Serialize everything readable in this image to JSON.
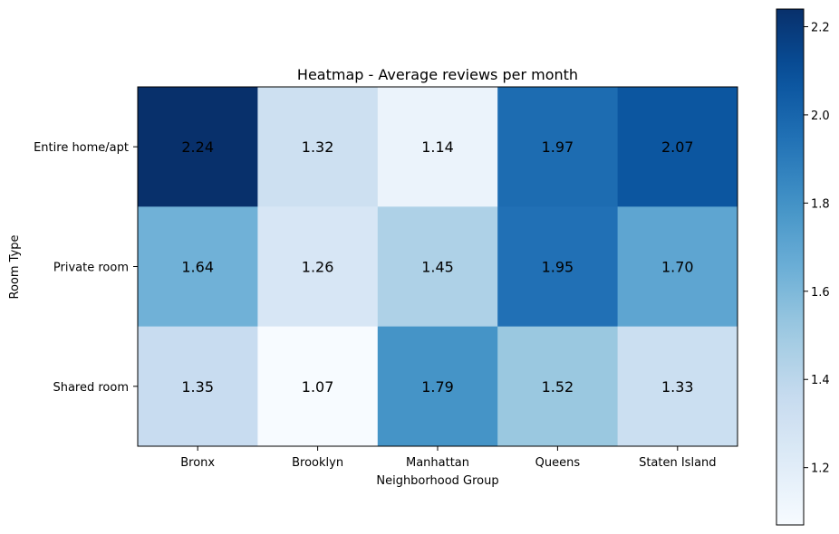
{
  "chart_data": {
    "type": "heatmap",
    "title": "Heatmap - Average reviews per month",
    "xlabel": "Neighborhood Group",
    "ylabel": "Room Type",
    "x_categories": [
      "Bronx",
      "Brooklyn",
      "Manhattan",
      "Queens",
      "Staten Island"
    ],
    "y_categories": [
      "Entire home/apt",
      "Private room",
      "Shared room"
    ],
    "values": [
      [
        2.24,
        1.32,
        1.14,
        1.97,
        2.07
      ],
      [
        1.64,
        1.26,
        1.45,
        1.95,
        1.7
      ],
      [
        1.35,
        1.07,
        1.79,
        1.52,
        1.33
      ]
    ],
    "cell_labels": [
      [
        "2.24",
        "1.32",
        "1.14",
        "1.97",
        "2.07"
      ],
      [
        "1.64",
        "1.26",
        "1.45",
        "1.95",
        "1.70"
      ],
      [
        "1.35",
        "1.07",
        "1.79",
        "1.52",
        "1.33"
      ]
    ],
    "colormap": "Blues",
    "colorbar": {
      "range": [
        1.07,
        2.24
      ],
      "ticks": [
        1.2,
        1.4,
        1.6,
        1.8,
        2.0,
        2.2
      ],
      "tick_labels": [
        "1.2",
        "1.4",
        "1.6",
        "1.8",
        "2.0",
        "2.2"
      ]
    },
    "grid": false,
    "legend": "none"
  }
}
